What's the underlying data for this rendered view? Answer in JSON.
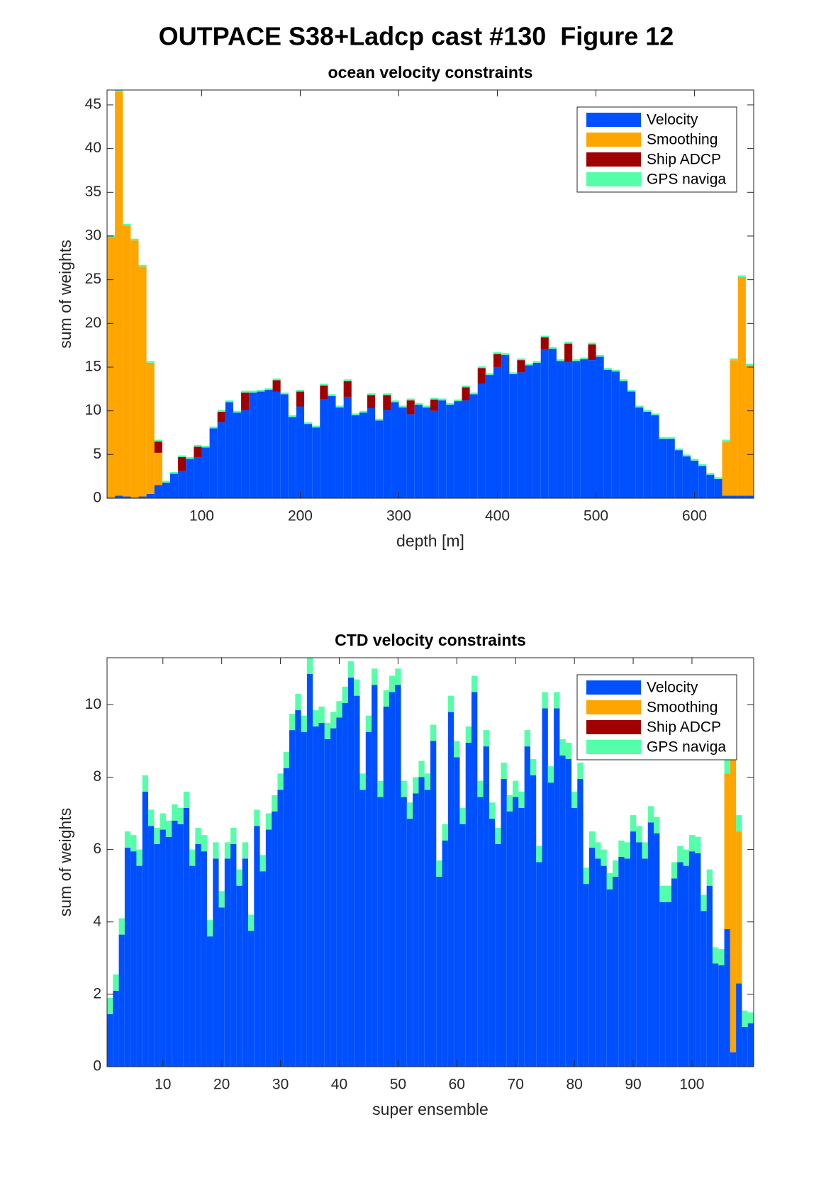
{
  "title": "OUTPACE S38+Ladcp cast #130  Figure 12",
  "chart_data": [
    {
      "type": "histogram",
      "title": "ocean velocity constraints",
      "xlabel": "depth [m]",
      "ylabel": "sum of weights",
      "bins": [
        4,
        12,
        20,
        28,
        36,
        44,
        52,
        60,
        68,
        76,
        84,
        92,
        100,
        108,
        116,
        124,
        132,
        140,
        148,
        156,
        164,
        172,
        180,
        188,
        196,
        204,
        212,
        220,
        228,
        236,
        244,
        252,
        260,
        268,
        276,
        284,
        292,
        300,
        308,
        316,
        324,
        332,
        340,
        348,
        356,
        364,
        372,
        380,
        388,
        396,
        404,
        412,
        420,
        428,
        436,
        444,
        452,
        460,
        468,
        476,
        484,
        492,
        500,
        508,
        516,
        524,
        532,
        540,
        548,
        556,
        564,
        572,
        580,
        588,
        596,
        604,
        612,
        620,
        628,
        636,
        644,
        652,
        660
      ],
      "xlim": [
        4,
        660
      ],
      "ylim": [
        0,
        46.7
      ],
      "xticks": [
        100,
        200,
        300,
        400,
        500,
        600
      ],
      "yticks": [
        0,
        5,
        10,
        15,
        20,
        25,
        30,
        35,
        40,
        45
      ],
      "stacked": true,
      "legend": "northeast",
      "series": [
        {
          "name": "Velocity",
          "color": "#0050ff",
          "values": [
            0.1,
            0.3,
            0.2,
            0.1,
            0.2,
            0.5,
            1.5,
            1.8,
            2.8,
            3.1,
            4.5,
            4.7,
            5.8,
            8.0,
            8.7,
            11.0,
            9.8,
            10.1,
            12.1,
            12.2,
            12.4,
            12.2,
            11.9,
            9.3,
            10.5,
            8.5,
            8.1,
            11.3,
            11.7,
            10.4,
            11.6,
            9.5,
            9.8,
            10.3,
            8.9,
            10.1,
            11.0,
            10.4,
            9.6,
            10.7,
            10.4,
            10.0,
            11.2,
            10.7,
            11.1,
            11.2,
            11.9,
            13.1,
            14.1,
            15.0,
            16.4,
            14.2,
            14.4,
            15.2,
            15.5,
            17.0,
            17.1,
            15.7,
            15.6,
            15.7,
            15.9,
            15.8,
            16.2,
            14.7,
            14.5,
            13.4,
            12.2,
            10.4,
            9.9,
            9.5,
            6.8,
            6.8,
            5.5,
            4.8,
            4.3,
            3.7,
            2.7,
            2.2,
            0.3,
            0.3,
            0.3,
            0.3
          ]
        },
        {
          "name": "Smoothing",
          "color": "#ffa500",
          "values": [
            29.8,
            46.2,
            31,
            29.4,
            26.3,
            15.0,
            3.7,
            0,
            0,
            0,
            0,
            0,
            0,
            0,
            0,
            0,
            0,
            0,
            0,
            0,
            0,
            0,
            0,
            0,
            0,
            0,
            0,
            0,
            0,
            0,
            0,
            0,
            0,
            0,
            0,
            0,
            0,
            0,
            0,
            0,
            0,
            0,
            0,
            0,
            0,
            0,
            0,
            0,
            0,
            0,
            0,
            0,
            0,
            0,
            0,
            0,
            0,
            0,
            0,
            0,
            0,
            0,
            0,
            0,
            0,
            0,
            0,
            0,
            0,
            0,
            0,
            0,
            0,
            0,
            0,
            0,
            0,
            0,
            6.2,
            15.5,
            25.0,
            14.9
          ]
        },
        {
          "name": "Ship ADCP",
          "color": "#a00000",
          "values": [
            0,
            0,
            0,
            0,
            0,
            0,
            1.3,
            0,
            0,
            1.6,
            0,
            1.2,
            0,
            0,
            1.2,
            0,
            0,
            2.0,
            0,
            0,
            0,
            1.3,
            0,
            0,
            1.7,
            0,
            0,
            1.6,
            0,
            0,
            1.8,
            0,
            0,
            1.5,
            0,
            1.7,
            0,
            0,
            1.6,
            0,
            0,
            1.3,
            0,
            0,
            0,
            1.5,
            0,
            1.8,
            0,
            1.5,
            0,
            0,
            1.4,
            0,
            0,
            1.4,
            0,
            0,
            2.1,
            0,
            0,
            1.8,
            0,
            0,
            0,
            0,
            0,
            0,
            0,
            0,
            0,
            0,
            0,
            0,
            0,
            0,
            0,
            0,
            0,
            0,
            0,
            0
          ]
        },
        {
          "name": "GPS naviga",
          "color": "#55ffaa",
          "values": [
            0.2,
            0.2,
            0.2,
            0.2,
            0.2,
            0.2,
            0.2,
            0.2,
            0.2,
            0.2,
            0.2,
            0.2,
            0.2,
            0.2,
            0.2,
            0.2,
            0.2,
            0.2,
            0.2,
            0.2,
            0.2,
            0.2,
            0.2,
            0.2,
            0.2,
            0.2,
            0.2,
            0.2,
            0.2,
            0.2,
            0.2,
            0.2,
            0.2,
            0.2,
            0.2,
            0.2,
            0.2,
            0.2,
            0.2,
            0.2,
            0.2,
            0.2,
            0.2,
            0.2,
            0.2,
            0.2,
            0.2,
            0.2,
            0.2,
            0.2,
            0.2,
            0.2,
            0.2,
            0.2,
            0.2,
            0.2,
            0.2,
            0.2,
            0.2,
            0.2,
            0.2,
            0.2,
            0.2,
            0.2,
            0.2,
            0.2,
            0.2,
            0.2,
            0.2,
            0.2,
            0.2,
            0.2,
            0.2,
            0.2,
            0.2,
            0.2,
            0.2,
            0.2,
            0.2,
            0.2,
            0.2,
            0.2
          ]
        }
      ]
    },
    {
      "type": "bar",
      "title": "CTD velocity constraints",
      "xlabel": "super ensemble",
      "ylabel": "sum of weights",
      "x": [
        1,
        2,
        3,
        4,
        5,
        6,
        7,
        8,
        9,
        10,
        11,
        12,
        13,
        14,
        15,
        16,
        17,
        18,
        19,
        20,
        21,
        22,
        23,
        24,
        25,
        26,
        27,
        28,
        29,
        30,
        31,
        32,
        33,
        34,
        35,
        36,
        37,
        38,
        39,
        40,
        41,
        42,
        43,
        44,
        45,
        46,
        47,
        48,
        49,
        50,
        51,
        52,
        53,
        54,
        55,
        56,
        57,
        58,
        59,
        60,
        61,
        62,
        63,
        64,
        65,
        66,
        67,
        68,
        69,
        70,
        71,
        72,
        73,
        74,
        75,
        76,
        77,
        78,
        79,
        80,
        81,
        82,
        83,
        84,
        85,
        86,
        87,
        88,
        89,
        90,
        91,
        92,
        93,
        94,
        95,
        96,
        97,
        98,
        99,
        100,
        101,
        102,
        103,
        104,
        105,
        106,
        107,
        108,
        109,
        110
      ],
      "xlim": [
        0.5,
        110.5
      ],
      "ylim": [
        0,
        11.3
      ],
      "xticks": [
        10,
        20,
        30,
        40,
        50,
        60,
        70,
        80,
        90,
        100
      ],
      "yticks": [
        0,
        2,
        4,
        6,
        8,
        10
      ],
      "stacked": true,
      "legend": "northeast",
      "series": [
        {
          "name": "Velocity",
          "color": "#0050ff",
          "values": [
            1.45,
            2.1,
            3.65,
            6.05,
            5.95,
            5.55,
            7.6,
            6.65,
            6.15,
            6.55,
            6.35,
            6.8,
            6.7,
            7.15,
            5.55,
            6.15,
            5.95,
            3.6,
            5.75,
            4.4,
            5.75,
            6.15,
            5.0,
            5.75,
            3.75,
            6.65,
            5.4,
            6.55,
            7.05,
            7.65,
            8.25,
            9.3,
            9.85,
            9.25,
            10.85,
            9.4,
            9.5,
            9.05,
            9.35,
            9.65,
            10.05,
            10.75,
            10.25,
            7.65,
            9.25,
            10.55,
            7.45,
            9.95,
            10.35,
            10.55,
            7.45,
            6.85,
            7.55,
            8.0,
            7.65,
            9.0,
            5.25,
            6.25,
            9.8,
            8.55,
            6.7,
            8.95,
            10.35,
            7.45,
            8.85,
            6.85,
            6.15,
            7.95,
            7.05,
            7.45,
            7.15,
            8.85,
            8.05,
            5.65,
            9.9,
            7.85,
            9.9,
            8.6,
            8.5,
            7.15,
            7.95,
            5.05,
            6.05,
            5.75,
            5.55,
            4.9,
            5.25,
            5.8,
            5.75,
            6.5,
            6.2,
            5.75,
            6.75,
            6.45,
            4.55,
            4.55,
            5.2,
            5.65,
            5.55,
            5.95,
            5.9,
            4.3,
            5.0,
            2.85,
            2.8,
            3.8,
            0.4,
            2.3,
            1.1,
            1.2
          ]
        },
        {
          "name": "Smoothing",
          "color": "#ffa500",
          "values": [
            0,
            0,
            0,
            0,
            0,
            0,
            0,
            0,
            0,
            0,
            0,
            0,
            0,
            0,
            0,
            0,
            0,
            0,
            0,
            0,
            0,
            0,
            0,
            0,
            0,
            0,
            0,
            0,
            0,
            0,
            0,
            0,
            0,
            0,
            0,
            0,
            0,
            0,
            0,
            0,
            0,
            0,
            0,
            0,
            0,
            0,
            0,
            0,
            0,
            0,
            0,
            0,
            0,
            0,
            0,
            0,
            0,
            0,
            0,
            0,
            0,
            0,
            0,
            0,
            0,
            0,
            0,
            0,
            0,
            0,
            0,
            0,
            0,
            0,
            0,
            0,
            0,
            0,
            0,
            0,
            0,
            0,
            0,
            0,
            0,
            0,
            0,
            0,
            0,
            0,
            0,
            0,
            0,
            0,
            0,
            0,
            0,
            0,
            0,
            0,
            0,
            0,
            0,
            0,
            0,
            4.3,
            8.4,
            4.2,
            0,
            0
          ]
        },
        {
          "name": "Ship ADCP",
          "color": "#a00000",
          "values": [
            0,
            0,
            0,
            0,
            0,
            0,
            0,
            0,
            0,
            0,
            0,
            0,
            0,
            0,
            0,
            0,
            0,
            0,
            0,
            0,
            0,
            0,
            0,
            0,
            0,
            0,
            0,
            0,
            0,
            0,
            0,
            0,
            0,
            0,
            0,
            0,
            0,
            0,
            0,
            0,
            0,
            0,
            0,
            0,
            0,
            0,
            0,
            0,
            0,
            0,
            0,
            0,
            0,
            0,
            0,
            0,
            0,
            0,
            0,
            0,
            0,
            0,
            0,
            0,
            0,
            0,
            0,
            0,
            0,
            0,
            0,
            0,
            0,
            0,
            0,
            0,
            0,
            0,
            0,
            0,
            0,
            0,
            0,
            0,
            0,
            0,
            0,
            0,
            0,
            0,
            0,
            0,
            0,
            0,
            0,
            0,
            0,
            0,
            0,
            0,
            0,
            0,
            0,
            0,
            0,
            0,
            0,
            0,
            0,
            0
          ]
        },
        {
          "name": "GPS naviga",
          "color": "#55ffaa",
          "values": [
            0.45,
            0.45,
            0.45,
            0.45,
            0.45,
            0.45,
            0.45,
            0.45,
            0.45,
            0.45,
            0.45,
            0.45,
            0.45,
            0.45,
            0.45,
            0.45,
            0.45,
            0.45,
            0.45,
            0.45,
            0.45,
            0.45,
            0.45,
            0.45,
            0.45,
            0.45,
            0.45,
            0.45,
            0.45,
            0.45,
            0.45,
            0.45,
            0.45,
            0.45,
            0.45,
            0.45,
            0.45,
            0.45,
            0.45,
            0.45,
            0.45,
            0.45,
            0.45,
            0.45,
            0.45,
            0.45,
            0.45,
            0.45,
            0.45,
            0.45,
            0.45,
            0.45,
            0.45,
            0.45,
            0.45,
            0.45,
            0.45,
            0.45,
            0.45,
            0.45,
            0.45,
            0.45,
            0.45,
            0.45,
            0.45,
            0.45,
            0.45,
            0.45,
            0.45,
            0.45,
            0.45,
            0.45,
            0.45,
            0.45,
            0.45,
            0.45,
            0.45,
            0.45,
            0.45,
            0.45,
            0.45,
            0.45,
            0.45,
            0.45,
            0.45,
            0.45,
            0.45,
            0.45,
            0.45,
            0.45,
            0.45,
            0.45,
            0.45,
            0.45,
            0.45,
            0.45,
            0.45,
            0.45,
            0.45,
            0.45,
            0.45,
            0.45,
            0.45,
            0.45,
            0.45,
            0.45,
            0.45,
            0.45,
            0.45,
            0.3
          ]
        }
      ]
    }
  ]
}
